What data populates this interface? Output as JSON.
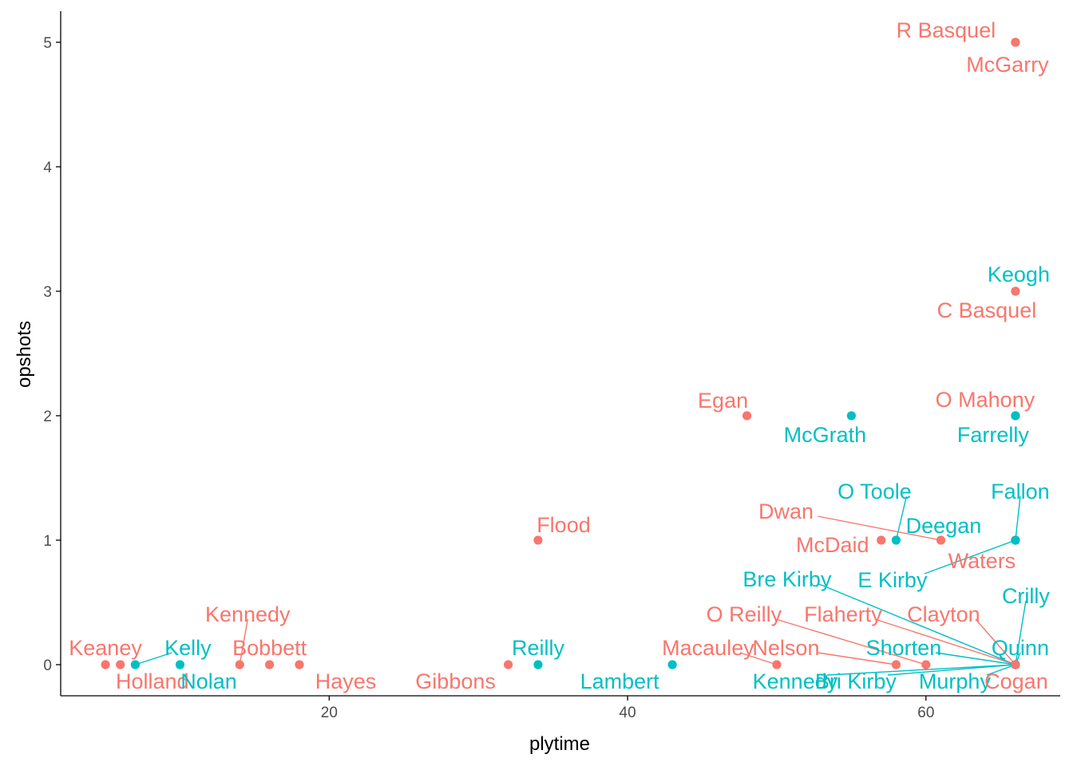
{
  "colors": {
    "group_a": "#F8766D",
    "group_b": "#00BFC4",
    "axis": "#000000",
    "tick_text": "#4d4d4d"
  },
  "chart_data": {
    "type": "scatter",
    "xlabel": "plytime",
    "ylabel": "opshots",
    "xlim": [
      2,
      69
    ],
    "ylim": [
      -0.25,
      5.25
    ],
    "x_ticks": [
      20,
      40,
      60
    ],
    "y_ticks": [
      0,
      1,
      2,
      3,
      4,
      5
    ],
    "grid": false,
    "legend": "none",
    "points": [
      {
        "x": 5,
        "y": 0,
        "group": "a",
        "label": "Keaney"
      },
      {
        "x": 6,
        "y": 0,
        "group": "a",
        "label": "Holland"
      },
      {
        "x": 7,
        "y": 0,
        "group": "b",
        "label": "Kelly"
      },
      {
        "x": 10,
        "y": 0,
        "group": "b",
        "label": "Nolan"
      },
      {
        "x": 14,
        "y": 0,
        "group": "a",
        "label": "Kennedy"
      },
      {
        "x": 16,
        "y": 0,
        "group": "a",
        "label": "Bobbett"
      },
      {
        "x": 18,
        "y": 0,
        "group": "a",
        "label": "Hayes"
      },
      {
        "x": 32,
        "y": 0,
        "group": "a",
        "label": "Gibbons"
      },
      {
        "x": 34,
        "y": 0,
        "group": "b",
        "label": "Reilly"
      },
      {
        "x": 34,
        "y": 1,
        "group": "a",
        "label": "Flood"
      },
      {
        "x": 43,
        "y": 0,
        "group": "b",
        "label": "Lambert"
      },
      {
        "x": 48,
        "y": 2,
        "group": "a",
        "label": "Egan"
      },
      {
        "x": 50,
        "y": 0,
        "group": "a",
        "label": "Macauley"
      },
      {
        "x": 55,
        "y": 2,
        "group": "b",
        "label": "McGrath"
      },
      {
        "x": 57,
        "y": 1,
        "group": "a",
        "label": "McDaid"
      },
      {
        "x": 58,
        "y": 1,
        "group": "b",
        "label": "O Toole"
      },
      {
        "x": 58,
        "y": 0,
        "group": "a",
        "label": "Nelson"
      },
      {
        "x": 60,
        "y": 0,
        "group": "a",
        "label": "O Reilly"
      },
      {
        "x": 61,
        "y": 1,
        "group": "a",
        "label": "Dwan"
      },
      {
        "x": 66,
        "y": 5,
        "group": "a",
        "label": "R Basquel"
      },
      {
        "x": 66,
        "y": 5,
        "group": "a",
        "label": "McGarry"
      },
      {
        "x": 66,
        "y": 3,
        "group": "b",
        "label": "Keogh"
      },
      {
        "x": 66,
        "y": 3,
        "group": "a",
        "label": "C Basquel"
      },
      {
        "x": 66,
        "y": 2,
        "group": "a",
        "label": "O Mahony"
      },
      {
        "x": 66,
        "y": 2,
        "group": "b",
        "label": "Farrelly"
      },
      {
        "x": 66,
        "y": 1,
        "group": "b",
        "label": "Fallon"
      },
      {
        "x": 66,
        "y": 1,
        "group": "b",
        "label": "Deegan"
      },
      {
        "x": 66,
        "y": 1,
        "group": "a",
        "label": "Waters"
      },
      {
        "x": 66,
        "y": 1,
        "group": "b",
        "label": "E Kirby"
      },
      {
        "x": 66,
        "y": 0,
        "group": "b",
        "label": "Bre Kirby"
      },
      {
        "x": 66,
        "y": 0,
        "group": "b",
        "label": "Crilly"
      },
      {
        "x": 66,
        "y": 0,
        "group": "a",
        "label": "Flaherty"
      },
      {
        "x": 66,
        "y": 0,
        "group": "a",
        "label": "Clayton"
      },
      {
        "x": 66,
        "y": 0,
        "group": "b",
        "label": "Shorten"
      },
      {
        "x": 66,
        "y": 0,
        "group": "b",
        "label": "Quinn"
      },
      {
        "x": 66,
        "y": 0,
        "group": "b",
        "label": "Kennedy"
      },
      {
        "x": 66,
        "y": 0,
        "group": "b",
        "label": "Bri Kirby"
      },
      {
        "x": 66,
        "y": 0,
        "group": "b",
        "label": "Murphy"
      },
      {
        "x": 66,
        "y": 0,
        "group": "a",
        "label": "Cogan"
      }
    ]
  }
}
